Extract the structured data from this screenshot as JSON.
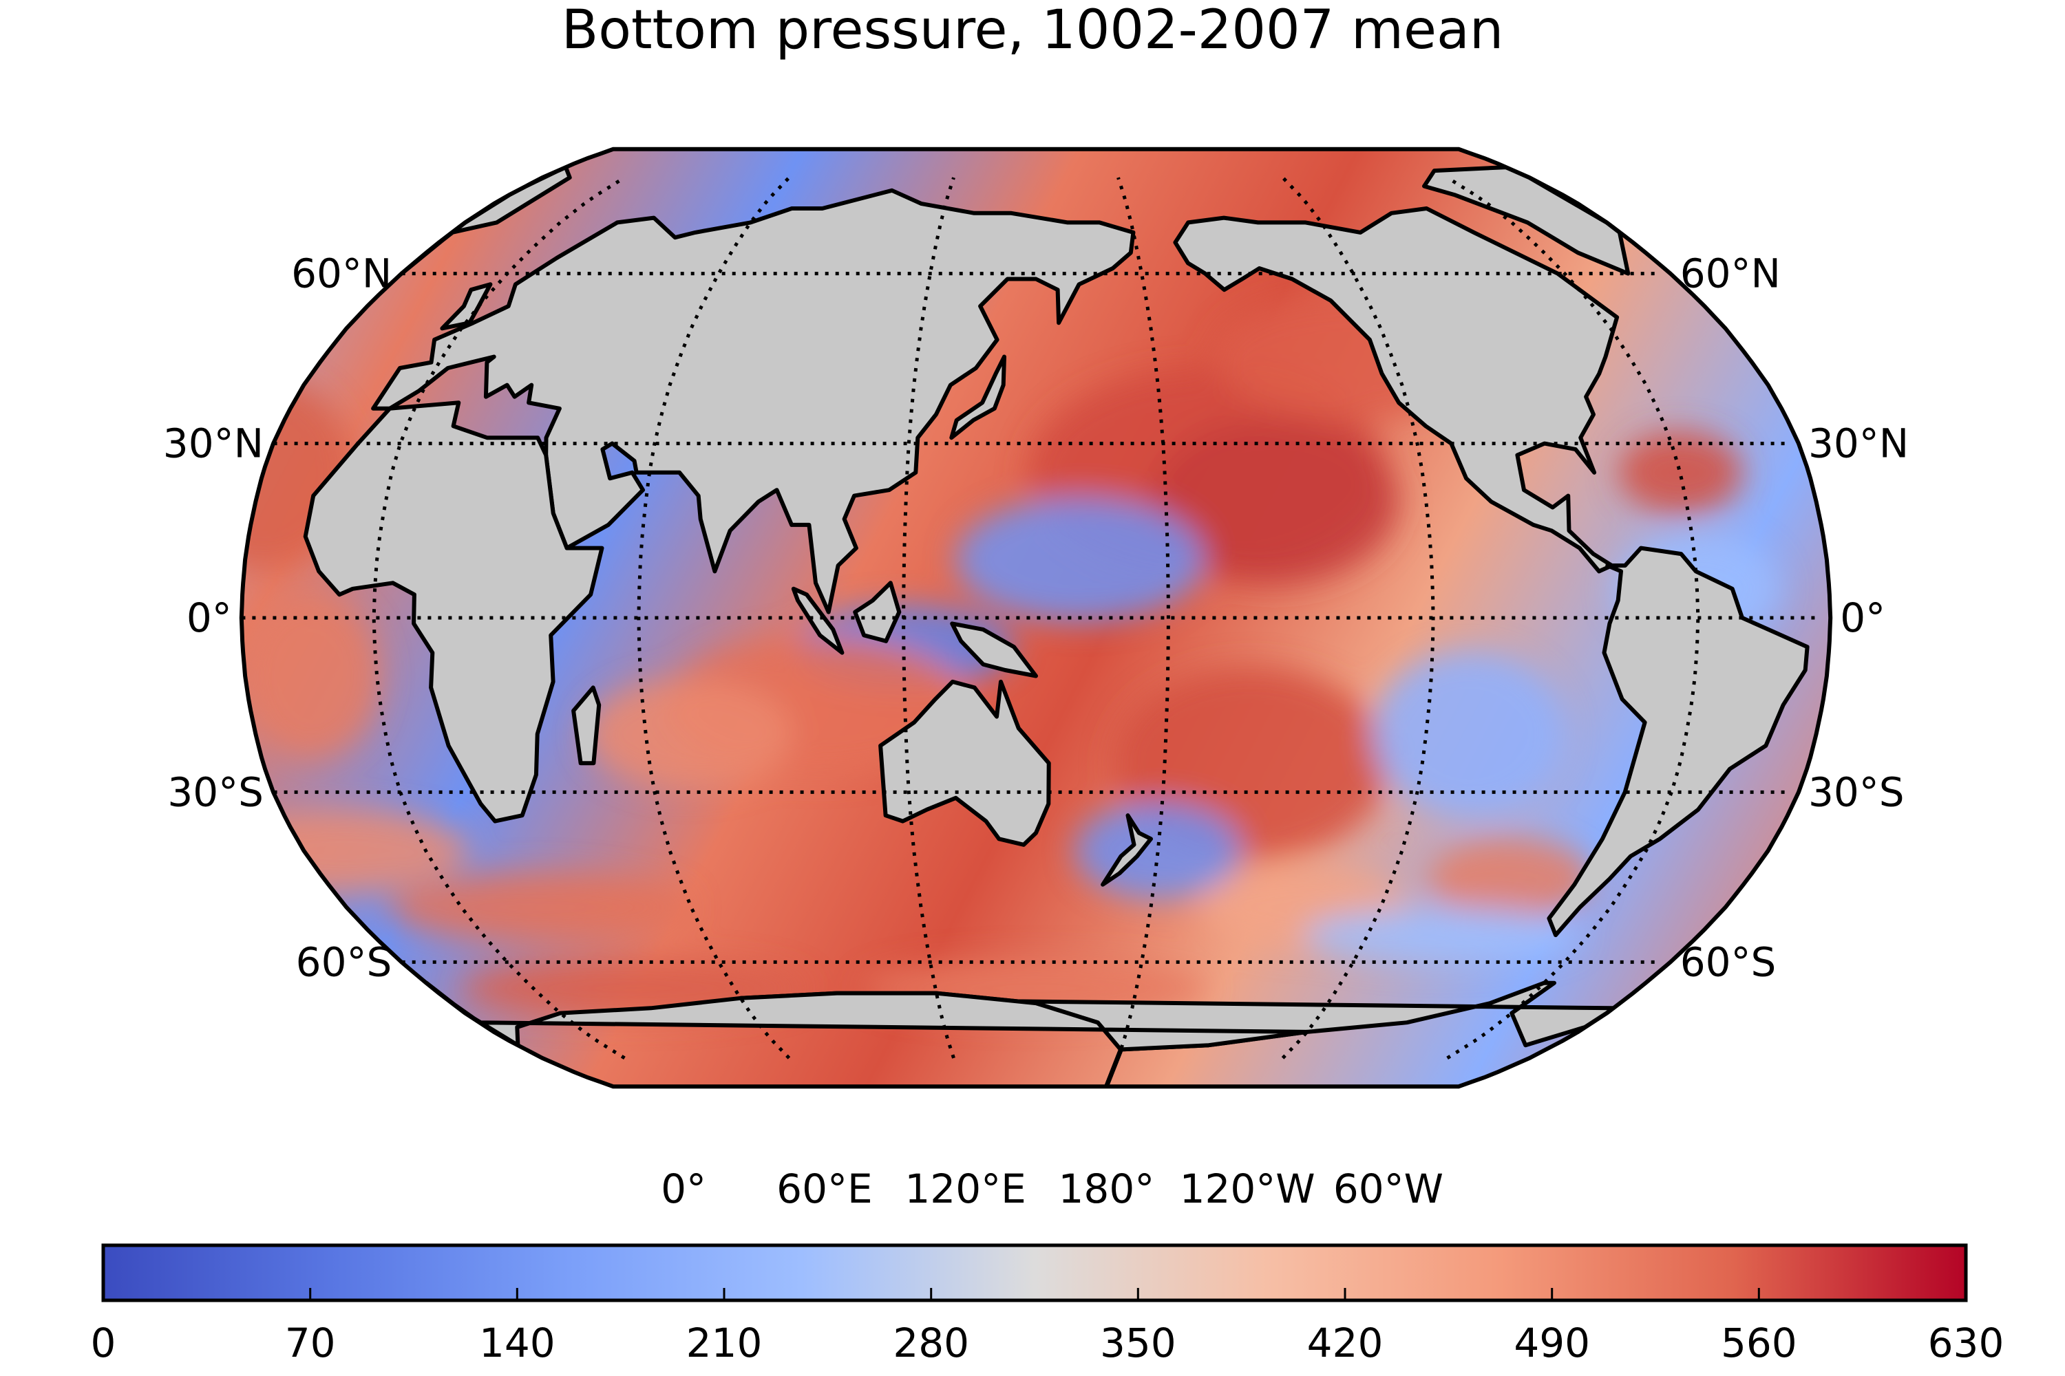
{
  "title": "Bottom pressure, 1002-2007 mean",
  "lat_labels": [
    {
      "text": "60°N",
      "lat": 60
    },
    {
      "text": "30°N",
      "lat": 30
    },
    {
      "text": "0°",
      "lat": 0
    },
    {
      "text": "30°S",
      "lat": -30
    },
    {
      "text": "60°S",
      "lat": -60
    }
  ],
  "lon_labels": [
    {
      "text": "0°",
      "lon": 0
    },
    {
      "text": "60°E",
      "lon": 60
    },
    {
      "text": "120°E",
      "lon": 120
    },
    {
      "text": "180°",
      "lon": 180
    },
    {
      "text": "120°W",
      "lon": -120
    },
    {
      "text": "60°W",
      "lon": -60
    }
  ],
  "projection": "Robinson",
  "central_longitude": 150,
  "colorbar": {
    "colormap": "coolwarm",
    "min": 0,
    "max": 630,
    "ticks": [
      "0",
      "70",
      "140",
      "210",
      "280",
      "350",
      "420",
      "490",
      "560",
      "630"
    ],
    "colors": {
      "low": "#3b4cc0",
      "mid": "#dddddd",
      "high": "#b40426"
    }
  },
  "colors": {
    "land": "#c8c8c8",
    "shelf": "#e6e6e6",
    "coastline": "#000000"
  }
}
